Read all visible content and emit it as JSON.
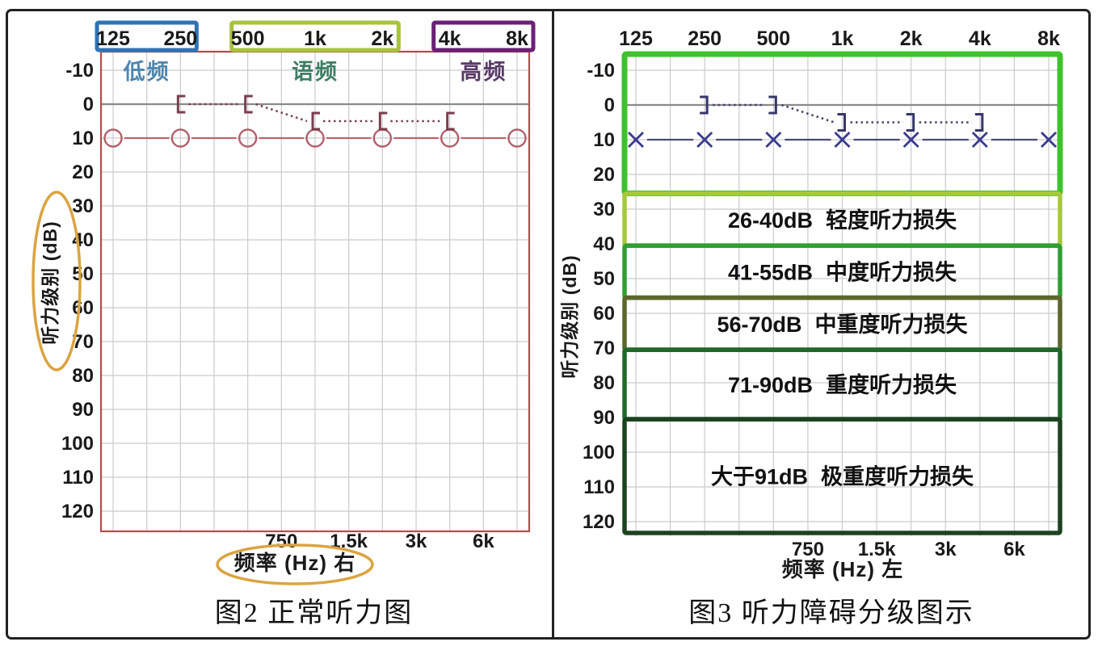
{
  "page": {
    "background": "#ffffff",
    "frame_color": "#222222"
  },
  "chart_data": [
    {
      "type": "line",
      "title": "图2 正常听力图",
      "xlabel": "频率 (Hz) 右",
      "ylabel": "听力级别 (dB)",
      "x": [
        "125",
        "250",
        "500",
        "1k",
        "2k",
        "4k",
        "8k"
      ],
      "x_minor": [
        "750",
        "1.5k",
        "3k",
        "6k"
      ],
      "ylim": [
        -10,
        120
      ],
      "y_step": 10,
      "y_inverted": true,
      "grid": true,
      "plot_border_color": "#b24d4d",
      "xlabel_circled": true,
      "ylabel_circled": true,
      "highlight_circle_color": "#dba440",
      "frequency_ranges": [
        {
          "label": "低频",
          "from": "125",
          "to": "250",
          "box_color": "#2e74b5",
          "text_color": "#4e86ae"
        },
        {
          "label": "语频",
          "from": "500",
          "to": "2k",
          "box_color": "#a9c23f",
          "text_color": "#3e7f63"
        },
        {
          "label": "高频",
          "from": "4k",
          "to": "8k",
          "box_color": "#6b2077",
          "text_color": "#5a3a68"
        }
      ],
      "series": [
        {
          "name": "air-conduction-circle-markers",
          "marker": "circle",
          "color": "#b25f6b",
          "line_color": "#c2606a",
          "line_style": "solid",
          "x": [
            "125",
            "250",
            "500",
            "1k",
            "2k",
            "4k",
            "8k"
          ],
          "values": [
            10,
            10,
            10,
            10,
            10,
            10,
            10
          ]
        },
        {
          "name": "bone-conduction-bracket-markers",
          "marker": "bracket-open-right",
          "color": "#7a3e4d",
          "line_color": "#7a4450",
          "line_style": "dotted",
          "x": [
            "250",
            "500",
            "1k",
            "2k",
            "4k"
          ],
          "values": [
            0,
            0,
            5,
            5,
            5
          ]
        }
      ]
    },
    {
      "type": "line",
      "title": "图3 听力障碍分级图示",
      "xlabel": "频率 (Hz) 左",
      "ylabel": "听力级别 (dB)",
      "x": [
        "125",
        "250",
        "500",
        "1k",
        "2k",
        "4k",
        "8k"
      ],
      "x_minor": [
        "750",
        "1.5k",
        "3k",
        "6k"
      ],
      "ylim": [
        -10,
        120
      ],
      "y_step": 10,
      "y_inverted": true,
      "grid": true,
      "series": [
        {
          "name": "air-conduction-x-markers",
          "marker": "x",
          "color": "#3b3b8f",
          "line_color": "#4b4b77",
          "line_style": "solid",
          "x": [
            "125",
            "250",
            "500",
            "1k",
            "2k",
            "4k",
            "8k"
          ],
          "values": [
            10,
            10,
            10,
            10,
            10,
            10,
            10
          ]
        },
        {
          "name": "bone-conduction-bracket-markers",
          "marker": "bracket-open-left",
          "color": "#36366b",
          "line_color": "#44446a",
          "line_style": "dotted",
          "x": [
            "250",
            "500",
            "1k",
            "2k",
            "4k"
          ],
          "values": [
            0,
            0,
            5,
            5,
            5
          ]
        }
      ],
      "bands": [
        {
          "db_from": -10,
          "db_to": 25,
          "range_label": "",
          "label": "",
          "color": "#3dc32b"
        },
        {
          "db_from": 26,
          "db_to": 40,
          "range_label": "26-40dB",
          "label": "轻度听力损失",
          "color": "#a6c93c"
        },
        {
          "db_from": 41,
          "db_to": 55,
          "range_label": "41-55dB",
          "label": "中度听力损失",
          "color": "#2f9e35"
        },
        {
          "db_from": 56,
          "db_to": 70,
          "range_label": "56-70dB",
          "label": "中重度听力损失",
          "color": "#5d662b"
        },
        {
          "db_from": 71,
          "db_to": 90,
          "range_label": "71-90dB",
          "label": "重度听力损失",
          "color": "#20682a"
        },
        {
          "db_from": 91,
          "db_to": 120,
          "range_label": "大于91dB",
          "label": "极重度听力损失",
          "color": "#1d4220"
        }
      ]
    }
  ]
}
